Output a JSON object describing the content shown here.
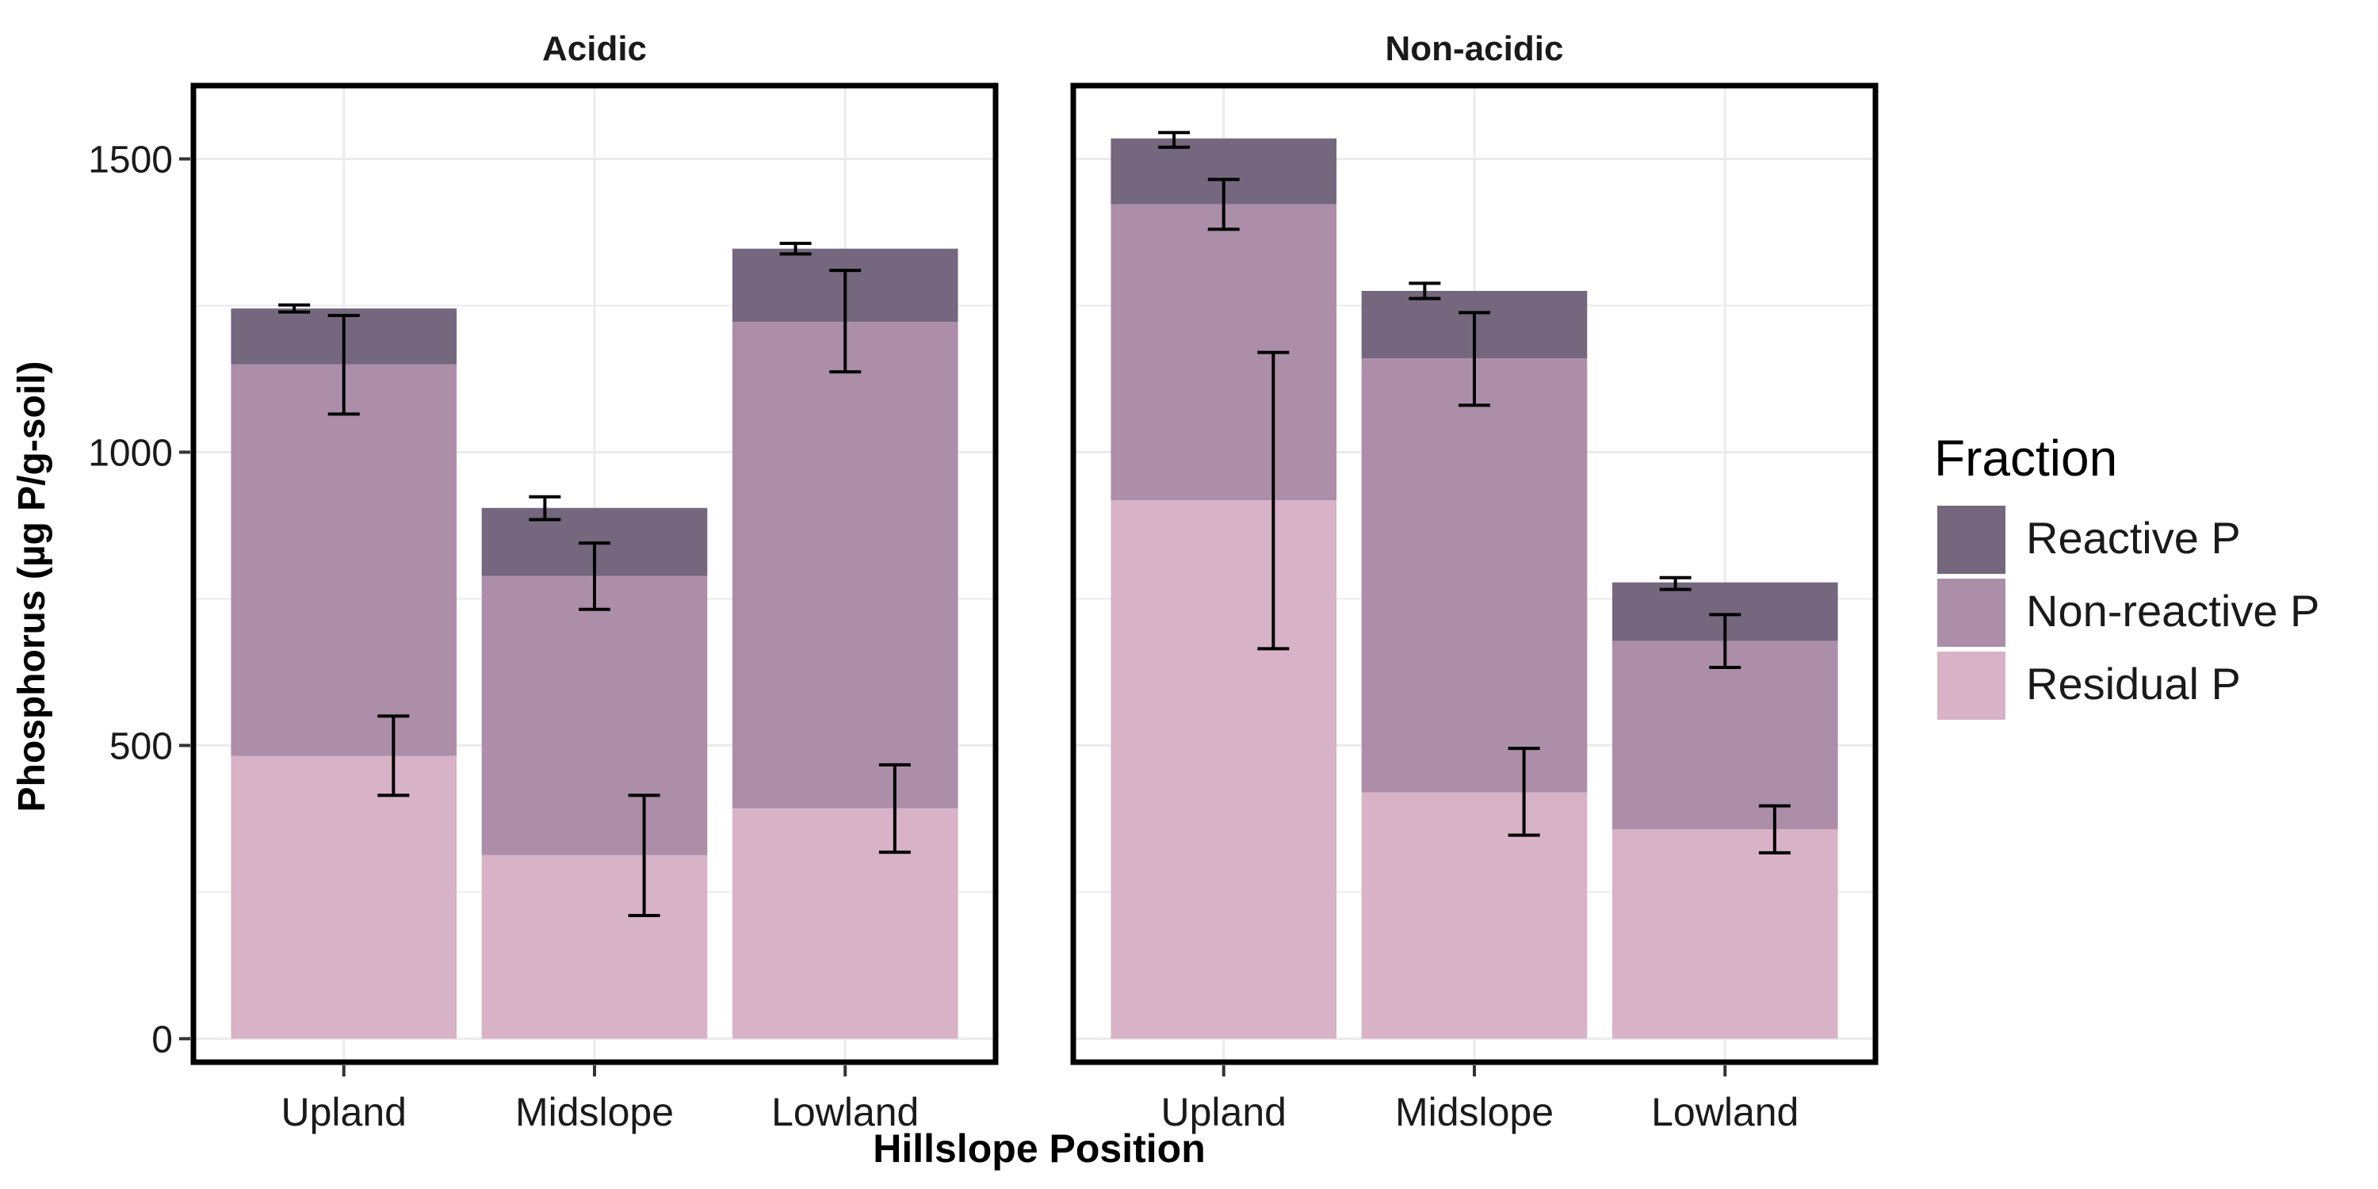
{
  "chart_data": {
    "type": "bar",
    "stacked": true,
    "xlabel": "Hillslope Position",
    "ylabel": "Phosphorus (µg P/g-soil)",
    "ylim": [
      -40,
      1625
    ],
    "yticks": [
      0,
      500,
      1000,
      1500
    ],
    "grid": true,
    "legend": {
      "title": "Fraction",
      "position": "right",
      "entries": [
        "Reactive P",
        "Non-reactive P",
        "Residual P"
      ]
    },
    "categories": [
      "Upland",
      "Midslope",
      "Lowland"
    ],
    "series_order_bottom_to_top": [
      "Residual P",
      "Non-reactive P",
      "Reactive P"
    ],
    "colors": {
      "Reactive P": "#75677e",
      "Non-reactive P": "#ac8ea8",
      "Residual P": "#d8b2c7",
      "grid": "#ebebeb",
      "frame": "#000000"
    },
    "panels": [
      {
        "title": "Acidic",
        "series": [
          {
            "name": "Residual P",
            "values": [
              482,
              313,
              393
            ],
            "err_low": [
              415,
              210,
              318
            ],
            "err_high": [
              550,
              415,
              467
            ]
          },
          {
            "name": "Non-reactive P",
            "values": [
              668,
              476,
              829
            ],
            "err_low": [
              1065,
              732,
              1137
            ],
            "err_high": [
              1233,
              845,
              1310
            ]
          },
          {
            "name": "Reactive P",
            "values": [
              95,
              116,
              125
            ],
            "err_low": [
              1239,
              885,
              1338
            ],
            "err_high": [
              1251,
              924,
              1356
            ]
          }
        ]
      },
      {
        "title": "Non-acidic",
        "series": [
          {
            "name": "Residual P",
            "values": [
              918,
              420,
              357
            ],
            "err_low": [
              665,
              347,
              317
            ],
            "err_high": [
              1170,
              495,
              397
            ]
          },
          {
            "name": "Non-reactive P",
            "values": [
              505,
              740,
              321
            ],
            "err_low": [
              1380,
              1080,
              633
            ],
            "err_high": [
              1465,
              1238,
              723
            ]
          },
          {
            "name": "Reactive P",
            "values": [
              112,
              115,
              100
            ],
            "err_low": [
              1520,
              1262,
              766
            ],
            "err_high": [
              1545,
              1288,
              786
            ]
          }
        ]
      }
    ]
  }
}
